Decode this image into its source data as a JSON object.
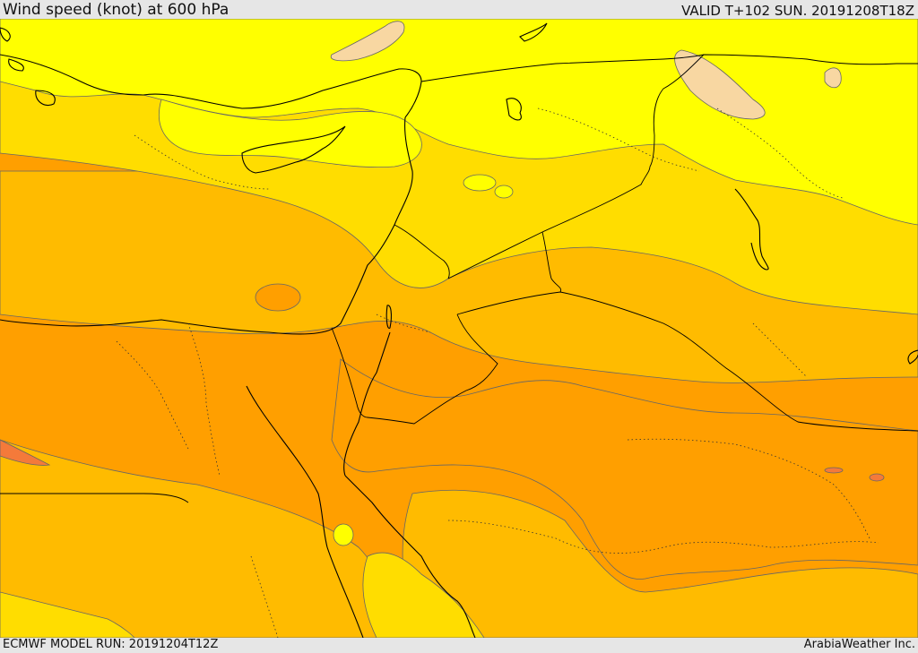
{
  "header": {
    "title": "Wind speed (knot) at 600 hPa",
    "valid": "VALID T+102 SUN. 20191208T18Z"
  },
  "footer": {
    "model_run": "ECMWF MODEL RUN: 20191204T12Z",
    "credit": "ArabiaWeather Inc."
  },
  "palette": {
    "band_lightest": "#f8d7a2",
    "band_1": "#ffff00",
    "band_2": "#ffdd00",
    "band_3": "#ffbb00",
    "band_4": "#ff9f00",
    "band_5": "#f47a3a",
    "coastline": "#000000",
    "contour": "#666666"
  }
}
